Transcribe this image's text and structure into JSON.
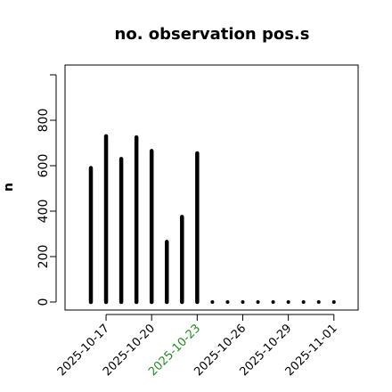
{
  "chart_data": {
    "type": "bar",
    "title": "no. observation pos.s",
    "ylabel": "n",
    "xlabel": "",
    "ylim": [
      0,
      1000
    ],
    "yticks": [
      0,
      200,
      400,
      600,
      800
    ],
    "dates": [
      "2025-10-16",
      "2025-10-17",
      "2025-10-18",
      "2025-10-19",
      "2025-10-20",
      "2025-10-21",
      "2025-10-22",
      "2025-10-23",
      "2025-10-24",
      "2025-10-25",
      "2025-10-26",
      "2025-10-27",
      "2025-10-28",
      "2025-10-29",
      "2025-10-30",
      "2025-10-31",
      "2025-11-01"
    ],
    "values": [
      590,
      730,
      630,
      725,
      665,
      265,
      375,
      655,
      0,
      0,
      0,
      0,
      0,
      0,
      0,
      0,
      0
    ],
    "x_tick_labels": [
      "2025-10-17",
      "2025-10-20",
      "2025-10-23",
      "2025-10-26",
      "2025-10-29",
      "2025-11-01"
    ],
    "highlight_tick": "2025-10-23",
    "colors": {
      "bars": "#000000",
      "highlight_tick": "#228b22",
      "axis": "#000000"
    }
  }
}
